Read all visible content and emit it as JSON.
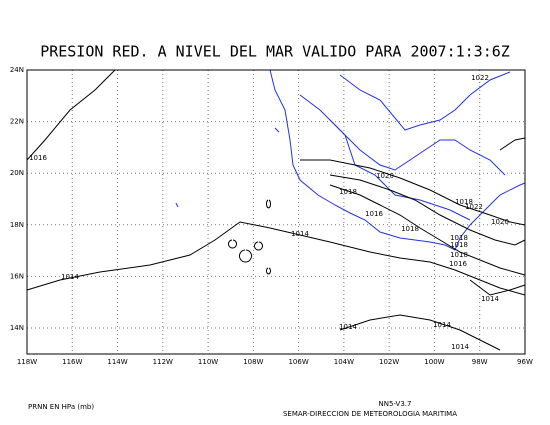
{
  "title": "PRESION RED. A NIVEL DEL MAR VALIDO PARA 2007:1:3:6Z",
  "lat_labels": [
    "24N",
    "22N",
    "20N",
    "18N",
    "16N",
    "14N"
  ],
  "lon_labels": [
    "118W",
    "116W",
    "114W",
    "112W",
    "110W",
    "108W",
    "106W",
    "104W",
    "102W",
    "100W",
    "98W",
    "96W"
  ],
  "contour_labels": [
    "1022",
    "1016",
    "1020",
    "1018",
    "1016",
    "1018",
    "1014",
    "1018",
    "1022",
    "1020",
    "1018",
    "1018",
    "1018",
    "1016",
    "1014",
    "1014",
    "1014",
    "1014",
    "1014"
  ],
  "footer": {
    "left": "PRNN EN HPa (mb)",
    "version": "NN5-V3.7",
    "credit": "SEMAR-DIRECCION DE METEOROLOGIA MARITIMA"
  }
}
